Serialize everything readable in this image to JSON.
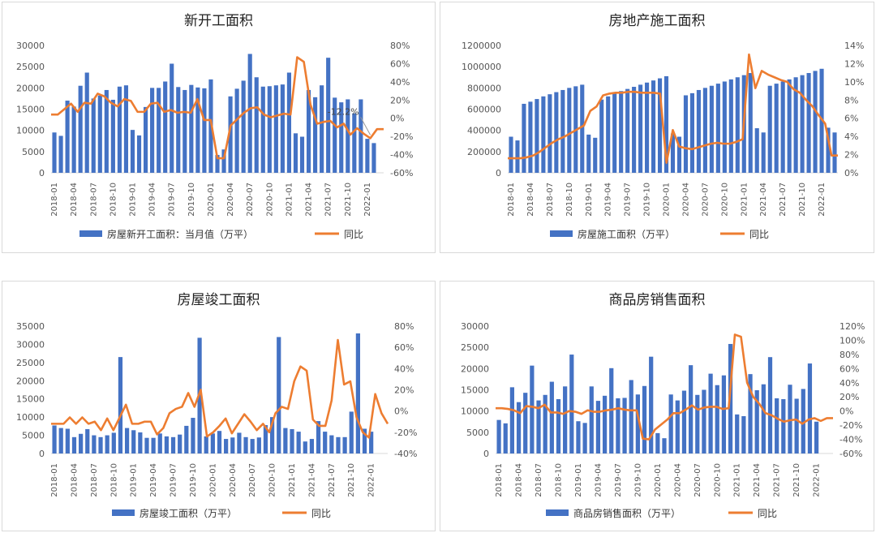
{
  "colors": {
    "bar": "#4472C4",
    "line": "#ED7D31"
  },
  "x_labels": [
    "2018-01",
    "2018-04",
    "2018-07",
    "2018-10",
    "2019-01",
    "2019-04",
    "2019-07",
    "2019-10",
    "2020-01",
    "2020-04",
    "2020-07",
    "2020-10",
    "2021-01",
    "2021-04",
    "2021-07",
    "2021-10",
    "2022-01"
  ],
  "chart_data": [
    {
      "type": "bar+line",
      "title": "新开工面积",
      "legend": [
        "房屋新开工面积：当月值（万平）",
        "同比"
      ],
      "left_axis": {
        "min": 0,
        "max": 30000,
        "ticks": [
          "0",
          "5000",
          "10000",
          "15000",
          "20000",
          "25000",
          "30000"
        ]
      },
      "right_axis": {
        "min": -60,
        "max": 80,
        "ticks": [
          "-60%",
          "-40%",
          "-20%",
          "0%",
          "20%",
          "40%",
          "60%",
          "80%"
        ]
      },
      "annotation": "-12.2%",
      "bars": [
        9500,
        8700,
        17000,
        15600,
        20500,
        23600,
        17500,
        18200,
        19500,
        17200,
        20300,
        20600,
        10100,
        8800,
        15500,
        20000,
        20000,
        21500,
        25700,
        20200,
        19500,
        20700,
        20100,
        19900,
        22000,
        4200,
        5500,
        18000,
        19800,
        21700,
        28000,
        22500,
        20300,
        20400,
        20600,
        20800,
        23600,
        9300,
        8500,
        19500,
        17800,
        20600,
        27100,
        17700,
        16600,
        17300,
        14000,
        17300,
        8000,
        7000
      ],
      "line": [
        4,
        4,
        10,
        16,
        7,
        17,
        16,
        27,
        24,
        17,
        13,
        21,
        19,
        7,
        7,
        16,
        17,
        7,
        9,
        6,
        7,
        6,
        21,
        -2,
        -2,
        -44,
        -44,
        -8,
        -1,
        6,
        11,
        12,
        4,
        1,
        3,
        5,
        4,
        67,
        62,
        15,
        -6,
        -4,
        -3,
        -10,
        -6,
        -18,
        -11,
        -17,
        -22,
        -12,
        -12
      ]
    },
    {
      "type": "bar+line",
      "title": "房地产施工面积",
      "legend": [
        "房屋施工面积（万平）",
        "同比"
      ],
      "left_axis": {
        "min": 0,
        "max": 1200000,
        "ticks": [
          "0",
          "200000",
          "400000",
          "600000",
          "800000",
          "1000000",
          "1200000"
        ]
      },
      "right_axis": {
        "min": 0,
        "max": 14,
        "ticks": [
          "0%",
          "2%",
          "4%",
          "6%",
          "8%",
          "10%",
          "12%",
          "14%"
        ]
      },
      "bars": [
        340000,
        305000,
        650000,
        670000,
        695000,
        720000,
        740000,
        760000,
        780000,
        800000,
        815000,
        830000,
        360000,
        330000,
        690000,
        720000,
        750000,
        770000,
        790000,
        810000,
        830000,
        850000,
        870000,
        890000,
        910000,
        370000,
        340000,
        730000,
        750000,
        780000,
        800000,
        820000,
        840000,
        860000,
        880000,
        900000,
        920000,
        940000,
        420000,
        380000,
        820000,
        840000,
        860000,
        880000,
        900000,
        920000,
        940000,
        960000,
        980000,
        425000,
        380000
      ],
      "line": [
        1.6,
        1.6,
        1.6,
        1.7,
        1.9,
        2.3,
        2.8,
        3.3,
        3.7,
        4,
        4.4,
        4.8,
        5.2,
        6.8,
        7.3,
        8.5,
        8.7,
        8.8,
        8.8,
        8.9,
        8.9,
        8.8,
        8.8,
        8.8,
        8.7,
        1.1,
        4.7,
        2.9,
        2.7,
        2.6,
        2.8,
        3,
        3.2,
        3.3,
        3.2,
        3.2,
        3.4,
        3.7,
        13,
        9.3,
        11.2,
        10.8,
        10.5,
        10.2,
        10,
        9.2,
        8.8,
        8,
        7.3,
        6.3,
        5.4,
        1.9,
        1.9
      ]
    },
    {
      "type": "bar+line",
      "title": "房屋竣工面积",
      "legend": [
        "房屋竣工面积（万平）",
        "同比"
      ],
      "left_axis": {
        "min": 0,
        "max": 35000,
        "ticks": [
          "0",
          "5000",
          "10000",
          "15000",
          "20000",
          "25000",
          "30000",
          "35000"
        ]
      },
      "right_axis": {
        "min": -40,
        "max": 80,
        "ticks": [
          "-40%",
          "-20%",
          "0%",
          "20%",
          "40%",
          "60%",
          "80%"
        ]
      },
      "bars": [
        7700,
        7000,
        6800,
        4500,
        5400,
        6700,
        5000,
        4500,
        5000,
        5700,
        26500,
        7000,
        6400,
        5800,
        4300,
        4300,
        5500,
        4700,
        4500,
        5200,
        7600,
        9800,
        31800,
        4700,
        5500,
        6200,
        4000,
        4400,
        5700,
        4500,
        4000,
        4400,
        7800,
        10000,
        32000,
        7000,
        6700,
        6000,
        3300,
        4000,
        8900,
        6000,
        5000,
        4500,
        4500,
        11500,
        33000,
        6800,
        6000
      ],
      "line": [
        -12,
        -12,
        -12,
        -6,
        -12,
        -6,
        -12,
        -10,
        -18,
        -7,
        -18,
        -6,
        6,
        -12,
        -12,
        -10,
        -10,
        -22,
        -16,
        -2,
        2,
        4,
        17,
        4,
        20,
        -24,
        -20,
        -14,
        -7,
        -21,
        -12,
        -3,
        -10,
        -18,
        -12,
        -20,
        -2,
        4,
        2,
        28,
        42,
        38,
        -8,
        -14,
        -14,
        10,
        67,
        25,
        28,
        -6,
        -20,
        -25,
        16,
        -2,
        -12
      ]
    },
    {
      "type": "bar+line",
      "title": "商品房销售面积",
      "legend": [
        "商品房销售面积（万平）",
        "同比"
      ],
      "left_axis": {
        "min": 0,
        "max": 30000,
        "ticks": [
          "0",
          "5000",
          "10000",
          "15000",
          "20000",
          "25000",
          "30000"
        ]
      },
      "right_axis": {
        "min": -60,
        "max": 120,
        "ticks": [
          "-60%",
          "-40%",
          "-20%",
          "0%",
          "20%",
          "40%",
          "60%",
          "80%",
          "100%",
          "120%"
        ]
      },
      "bars": [
        7900,
        7100,
        15600,
        12100,
        14300,
        20700,
        12500,
        13800,
        16900,
        12800,
        15800,
        23300,
        7600,
        7200,
        15800,
        12400,
        13600,
        20100,
        13000,
        13100,
        17300,
        13900,
        15900,
        22800,
        4800,
        3600,
        13900,
        12500,
        14800,
        20800,
        13800,
        15000,
        18800,
        16100,
        18400,
        25800,
        9200,
        8800,
        18700,
        14900,
        16300,
        22700,
        13000,
        12800,
        16200,
        12900,
        15200,
        21200,
        7500
      ],
      "line": [
        4,
        4,
        3,
        1,
        -3,
        7,
        6,
        4,
        9,
        -2,
        -2,
        -4,
        0,
        -1,
        -4,
        1,
        -1,
        -1,
        1,
        2,
        4,
        2,
        1,
        1,
        -39,
        -40,
        -26,
        -19,
        -12,
        -3,
        -3,
        2,
        8,
        2,
        5,
        6,
        6,
        3,
        4,
        108,
        105,
        40,
        20,
        10,
        -3,
        -6,
        -11,
        -15,
        -13,
        -12,
        -18,
        -12,
        -10,
        -14,
        -10,
        -10
      ]
    }
  ]
}
